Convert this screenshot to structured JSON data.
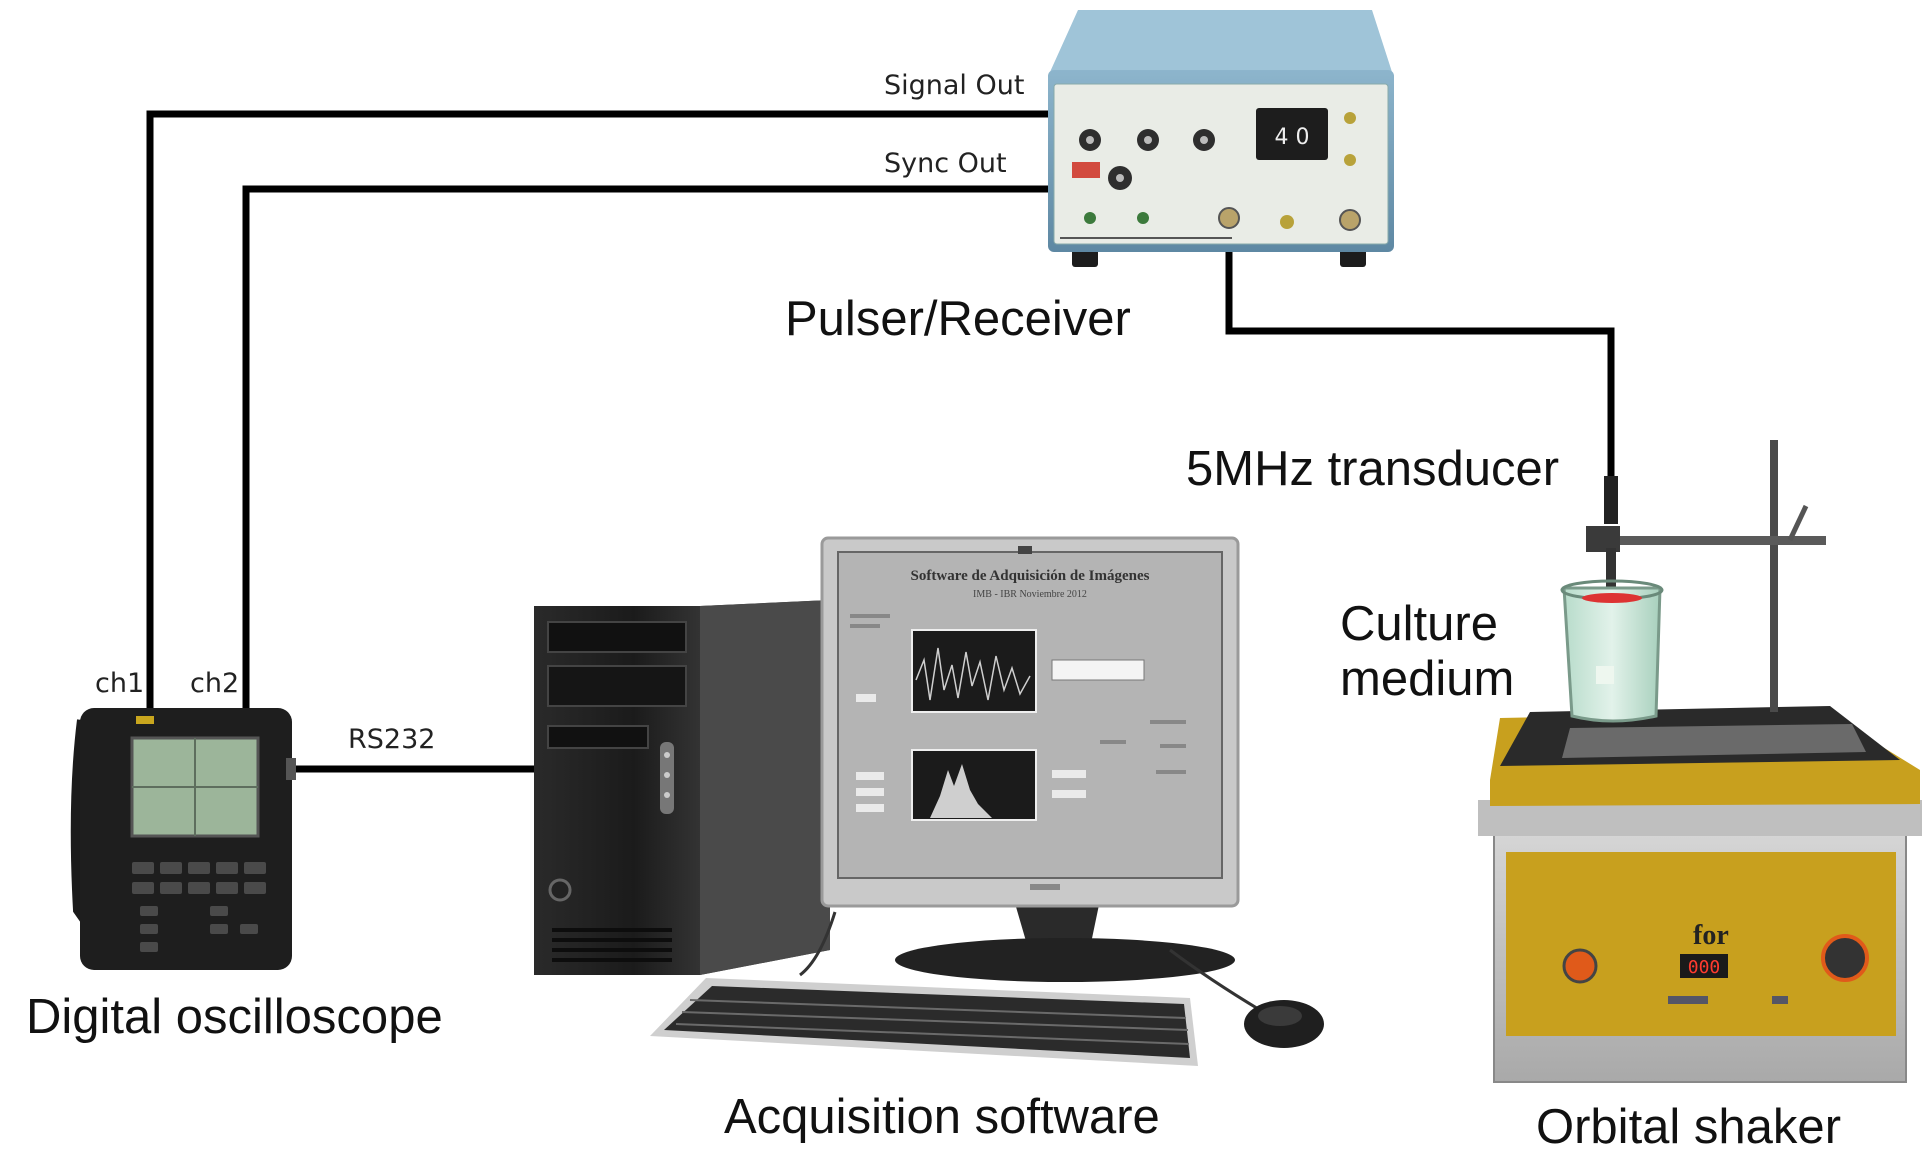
{
  "labels": {
    "signal_out": "Signal Out",
    "sync_out": "Sync Out",
    "pulser_receiver": "Pulser/Receiver",
    "transducer": "5MHz transducer",
    "culture_line1": "Culture",
    "culture_line2": "medium",
    "ch1": "ch1",
    "ch2": "ch2",
    "rs232": "RS232",
    "digital_oscilloscope": "Digital oscilloscope",
    "acquisition_software": "Acquisition software",
    "orbital_shaker": "Orbital shaker"
  },
  "pulser_panel": {
    "gain_readout": "4 0"
  },
  "screen_software": {
    "title": "Software de Adquisición de Imágenes",
    "subtitle": "IMB - IBR Noviembre 2012"
  },
  "shaker_panel": {
    "brand": "for",
    "display": "000"
  },
  "colors": {
    "cable": "#000000",
    "pulser_body": "#6f98b2",
    "pulser_panel": "#e9ece6",
    "shaker_yellow": "#c8a01e",
    "shaker_base": "#bcbcbc",
    "pc_tower": "#1f1f1f",
    "monitor_frame": "#c9c9c9",
    "screen_bg": "#b4b4b4",
    "scope_body": "#1e1e1e",
    "scope_screen": "#9cb59a",
    "beaker_liquid": "#c4e0d2"
  }
}
